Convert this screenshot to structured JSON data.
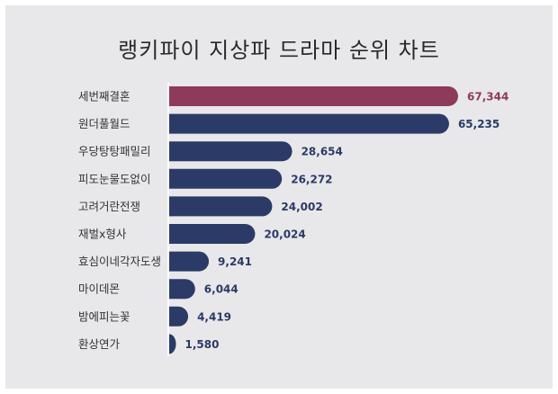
{
  "chart_data": {
    "type": "bar",
    "orientation": "horizontal",
    "title": "랭키파이 지상파 드라마 순위 차트",
    "categories": [
      "세번째결혼",
      "원더풀월드",
      "우당탕탕패밀리",
      "피도눈물도없이",
      "고려거란전쟁",
      "재벌x형사",
      "효심이네각자도생",
      "마이데몬",
      "밤에피는꽃",
      "환상연가"
    ],
    "values": [
      67344,
      65235,
      28654,
      26272,
      24002,
      20024,
      9241,
      6044,
      4419,
      1580
    ],
    "value_labels": [
      "67,344",
      "65,235",
      "28,654",
      "26,272",
      "24,002",
      "20,024",
      "9,241",
      "6,044",
      "4,419",
      "1,580"
    ],
    "colors": {
      "highlight": "#8e3a5b",
      "bar": "#2b3a66",
      "highlight_label": "#8e3a5b",
      "label": "#2b3a66"
    },
    "highlight_index": 0,
    "grid": false,
    "legend": "none"
  }
}
